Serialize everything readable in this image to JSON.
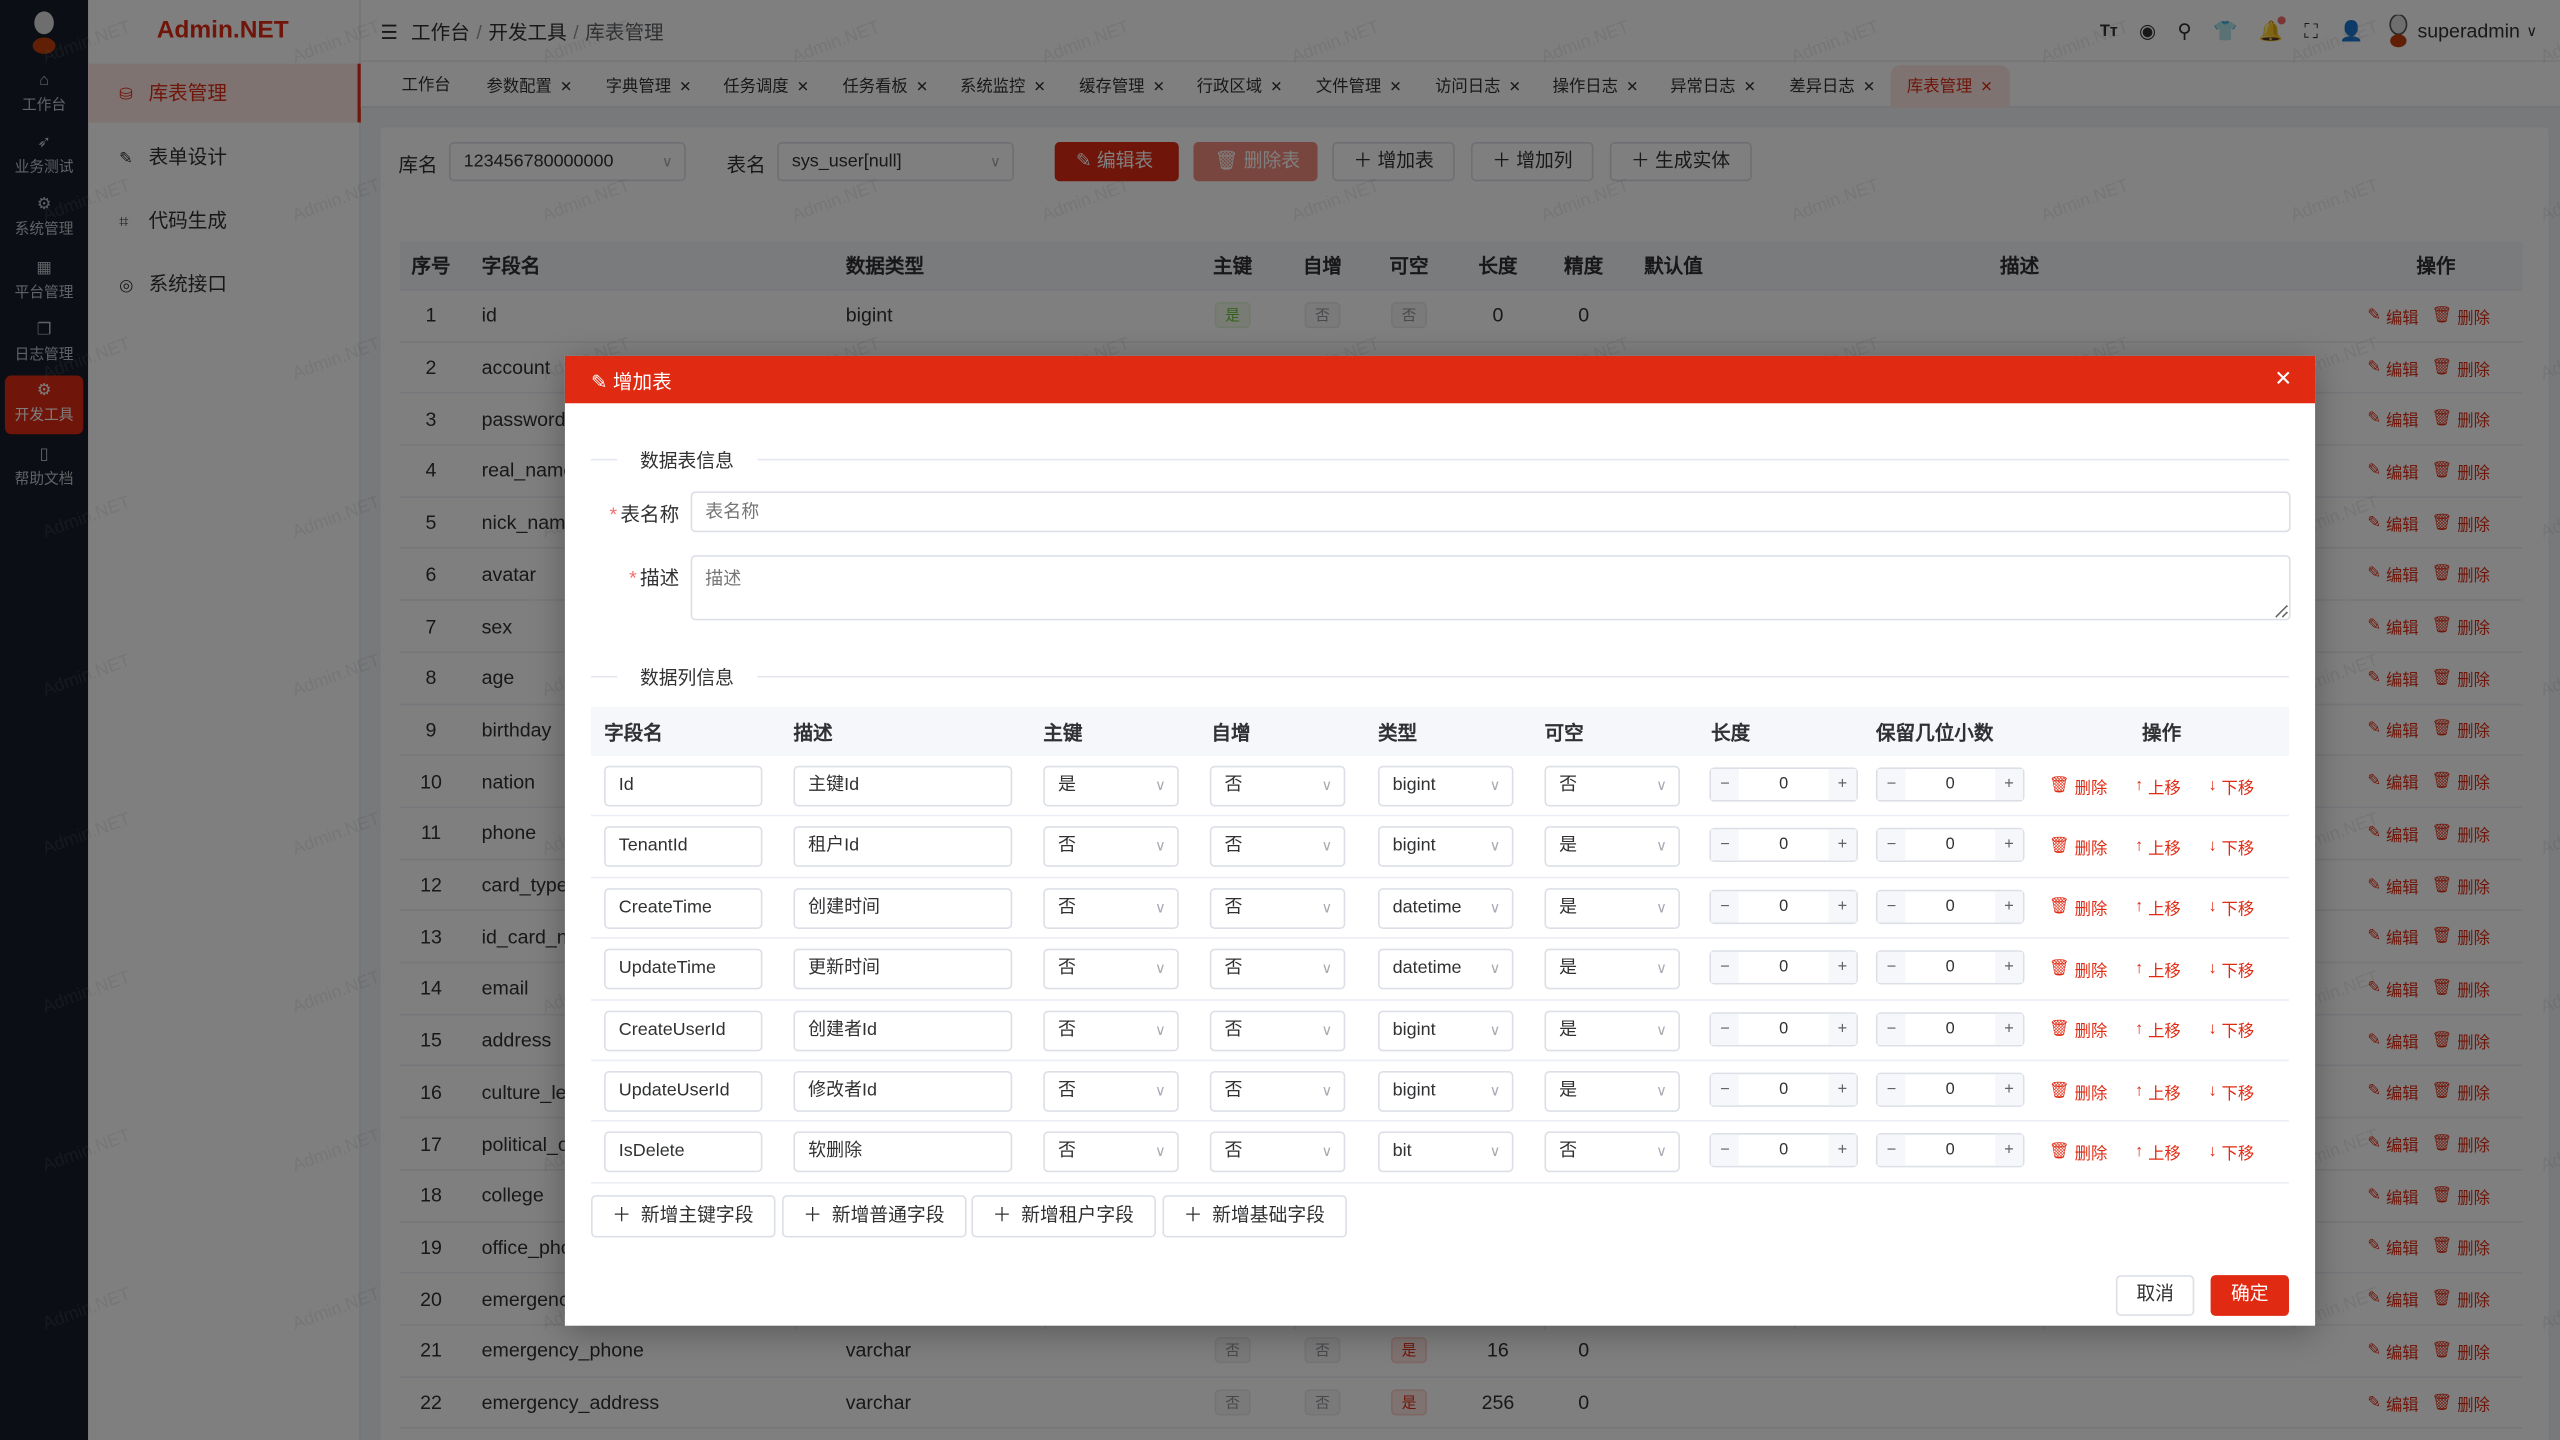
{
  "brand": "Admin.NET",
  "watermark": "Admin.NET",
  "rail": [
    {
      "label": "工作台",
      "icon": "home-icon",
      "glyph": "⌂"
    },
    {
      "label": "业务测试",
      "icon": "send-icon",
      "glyph": "➶"
    },
    {
      "label": "系统管理",
      "icon": "gear-icon",
      "glyph": "⚙"
    },
    {
      "label": "平台管理",
      "icon": "grid-icon",
      "glyph": "▦"
    },
    {
      "label": "日志管理",
      "icon": "copy-icon",
      "glyph": "❐"
    },
    {
      "label": "开发工具",
      "icon": "chip-icon",
      "glyph": "⚙",
      "active": true
    },
    {
      "label": "帮助文档",
      "icon": "notebook-icon",
      "glyph": "▯"
    }
  ],
  "side": [
    {
      "label": "库表管理",
      "icon": "database-icon",
      "glyph": "⛁",
      "active": true
    },
    {
      "label": "表单设计",
      "icon": "edit-icon",
      "glyph": "✎"
    },
    {
      "label": "代码生成",
      "icon": "crop-icon",
      "glyph": "⌗"
    },
    {
      "label": "系统接口",
      "icon": "lifebuoy-icon",
      "glyph": "◎"
    }
  ],
  "breadcrumb": [
    "工作台",
    "开发工具",
    "库表管理"
  ],
  "user": {
    "name": "superadmin"
  },
  "tabs": [
    {
      "label": "工作台",
      "closable": false
    },
    {
      "label": "参数配置",
      "closable": true
    },
    {
      "label": "字典管理",
      "closable": true
    },
    {
      "label": "任务调度",
      "closable": true
    },
    {
      "label": "任务看板",
      "closable": true
    },
    {
      "label": "系统监控",
      "closable": true
    },
    {
      "label": "缓存管理",
      "closable": true
    },
    {
      "label": "行政区域",
      "closable": true
    },
    {
      "label": "文件管理",
      "closable": true
    },
    {
      "label": "访问日志",
      "closable": true
    },
    {
      "label": "操作日志",
      "closable": true
    },
    {
      "label": "异常日志",
      "closable": true
    },
    {
      "label": "差异日志",
      "closable": true
    },
    {
      "label": "库表管理",
      "closable": true,
      "active": true
    }
  ],
  "toolbar": {
    "db_label": "库名",
    "db_value": "123456780000000",
    "table_label": "表名",
    "table_value": "sys_user[null]",
    "edit_table": "编辑表",
    "delete_table": "删除表",
    "add_table": "增加表",
    "add_column": "增加列",
    "gen_entity": "生成实体"
  },
  "bg_table": {
    "headers": [
      "序号",
      "字段名",
      "数据类型",
      "主键",
      "自增",
      "可空",
      "长度",
      "精度",
      "默认值",
      "描述",
      "操作"
    ],
    "edit": "编辑",
    "delete": "删除",
    "rows": [
      {
        "no": "1",
        "name": "id",
        "type": "bigint",
        "pk": "是",
        "inc": "否",
        "null": "否",
        "len": "0",
        "prec": "0"
      },
      {
        "no": "2",
        "name": "account"
      },
      {
        "no": "3",
        "name": "password"
      },
      {
        "no": "4",
        "name": "real_name"
      },
      {
        "no": "5",
        "name": "nick_name"
      },
      {
        "no": "6",
        "name": "avatar"
      },
      {
        "no": "7",
        "name": "sex"
      },
      {
        "no": "8",
        "name": "age"
      },
      {
        "no": "9",
        "name": "birthday"
      },
      {
        "no": "10",
        "name": "nation"
      },
      {
        "no": "11",
        "name": "phone"
      },
      {
        "no": "12",
        "name": "card_type"
      },
      {
        "no": "13",
        "name": "id_card_nu"
      },
      {
        "no": "14",
        "name": "email"
      },
      {
        "no": "15",
        "name": "address"
      },
      {
        "no": "16",
        "name": "culture_lev"
      },
      {
        "no": "17",
        "name": "political_ou"
      },
      {
        "no": "18",
        "name": "college"
      },
      {
        "no": "19",
        "name": "office_phon"
      },
      {
        "no": "20",
        "name": "emergency"
      },
      {
        "no": "21",
        "name": "emergency_phone",
        "type": "varchar",
        "pk": "否",
        "inc": "否",
        "null": "是",
        "len": "16",
        "prec": "0"
      },
      {
        "no": "22",
        "name": "emergency_address",
        "type": "varchar",
        "pk": "否",
        "inc": "否",
        "null": "是",
        "len": "256",
        "prec": "0"
      }
    ]
  },
  "modal": {
    "title": "增加表",
    "section_table": "数据表信息",
    "name_label": "表名称",
    "name_placeholder": "表名称",
    "name_value": "",
    "desc_label": "描述",
    "desc_placeholder": "描述",
    "desc_value": "",
    "section_columns": "数据列信息",
    "col_headers": [
      "字段名",
      "描述",
      "主键",
      "自增",
      "类型",
      "可空",
      "长度",
      "保留几位小数",
      "操作"
    ],
    "op_delete": "删除",
    "op_up": "上移",
    "op_down": "下移",
    "columns": [
      {
        "name": "Id",
        "desc": "主键Id",
        "pk": "是",
        "inc": "否",
        "type": "bigint",
        "null": "否",
        "len": "0",
        "dec": "0"
      },
      {
        "name": "TenantId",
        "desc": "租户Id",
        "pk": "否",
        "inc": "否",
        "type": "bigint",
        "null": "是",
        "len": "0",
        "dec": "0"
      },
      {
        "name": "CreateTime",
        "desc": "创建时间",
        "pk": "否",
        "inc": "否",
        "type": "datetime",
        "null": "是",
        "len": "0",
        "dec": "0"
      },
      {
        "name": "UpdateTime",
        "desc": "更新时间",
        "pk": "否",
        "inc": "否",
        "type": "datetime",
        "null": "是",
        "len": "0",
        "dec": "0"
      },
      {
        "name": "CreateUserId",
        "desc": "创建者Id",
        "pk": "否",
        "inc": "否",
        "type": "bigint",
        "null": "是",
        "len": "0",
        "dec": "0"
      },
      {
        "name": "UpdateUserId",
        "desc": "修改者Id",
        "pk": "否",
        "inc": "否",
        "type": "bigint",
        "null": "是",
        "len": "0",
        "dec": "0"
      },
      {
        "name": "IsDelete",
        "desc": "软删除",
        "pk": "否",
        "inc": "否",
        "type": "bit",
        "null": "否",
        "len": "0",
        "dec": "0"
      }
    ],
    "add_buttons": [
      "新增主键字段",
      "新增普通字段",
      "新增租户字段",
      "新增基础字段"
    ],
    "cancel": "取消",
    "confirm": "确定"
  },
  "colors": {
    "accent": "#e02a12",
    "sidebar": "#171d28",
    "success": "#67c23a"
  }
}
